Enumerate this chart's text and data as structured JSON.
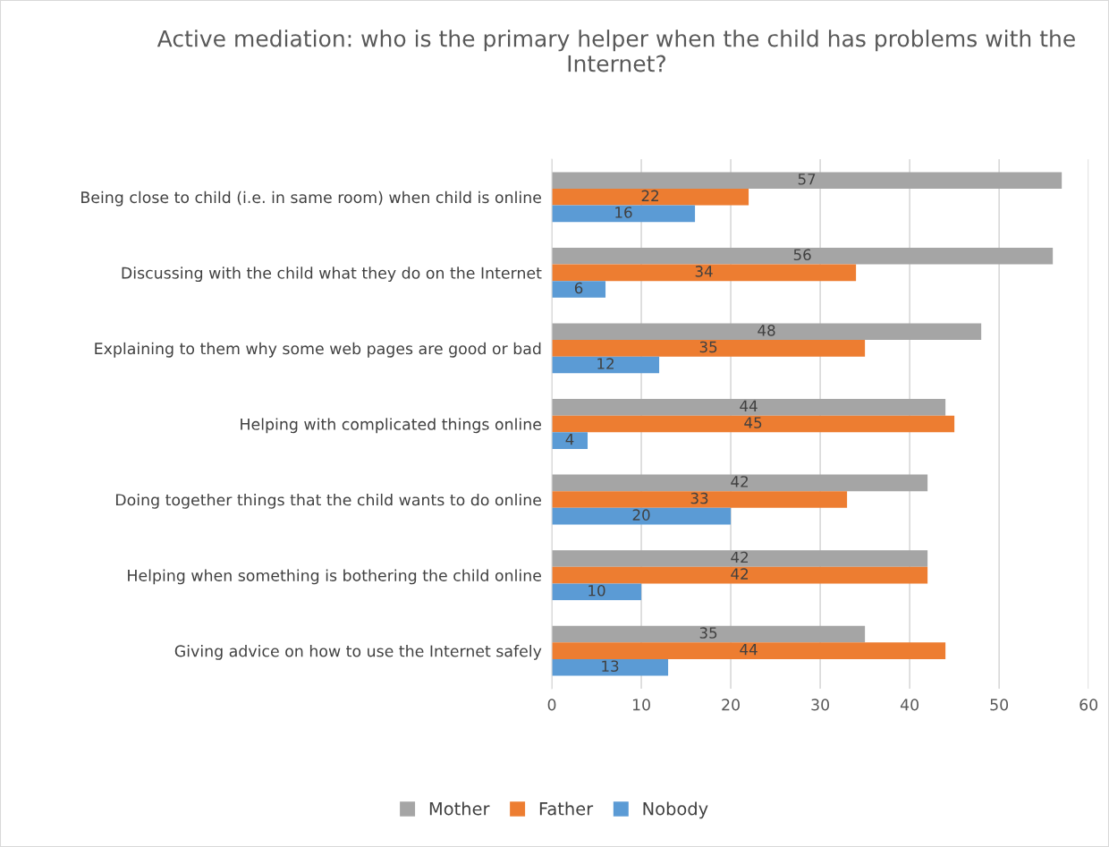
{
  "chart_data": {
    "type": "bar",
    "orientation": "horizontal",
    "title": "Active mediation: who is the primary helper when the child has problems with the Internet?",
    "categories": [
      "Being close to child (i.e. in same room) when child is online",
      "Discussing with the child what they do on the Internet",
      "Explaining to them why some web pages are good or bad",
      "Helping with complicated things online",
      "Doing together things that the child wants to do online",
      "Helping when something is bothering the child online",
      "Giving advice on how to use the Internet safely"
    ],
    "series": [
      {
        "name": "Mother",
        "color": "#a5a5a5",
        "values": [
          57,
          56,
          48,
          44,
          42,
          42,
          35
        ]
      },
      {
        "name": "Father",
        "color": "#ed7d31",
        "values": [
          22,
          34,
          35,
          45,
          33,
          42,
          44
        ]
      },
      {
        "name": "Nobody",
        "color": "#5b9bd5",
        "values": [
          16,
          6,
          12,
          4,
          20,
          10,
          13
        ]
      }
    ],
    "xlim": [
      0,
      60
    ],
    "xticks": [
      0,
      10,
      20,
      30,
      40,
      50,
      60
    ],
    "grid": "x",
    "legend": "bottom",
    "data_labels": true
  }
}
